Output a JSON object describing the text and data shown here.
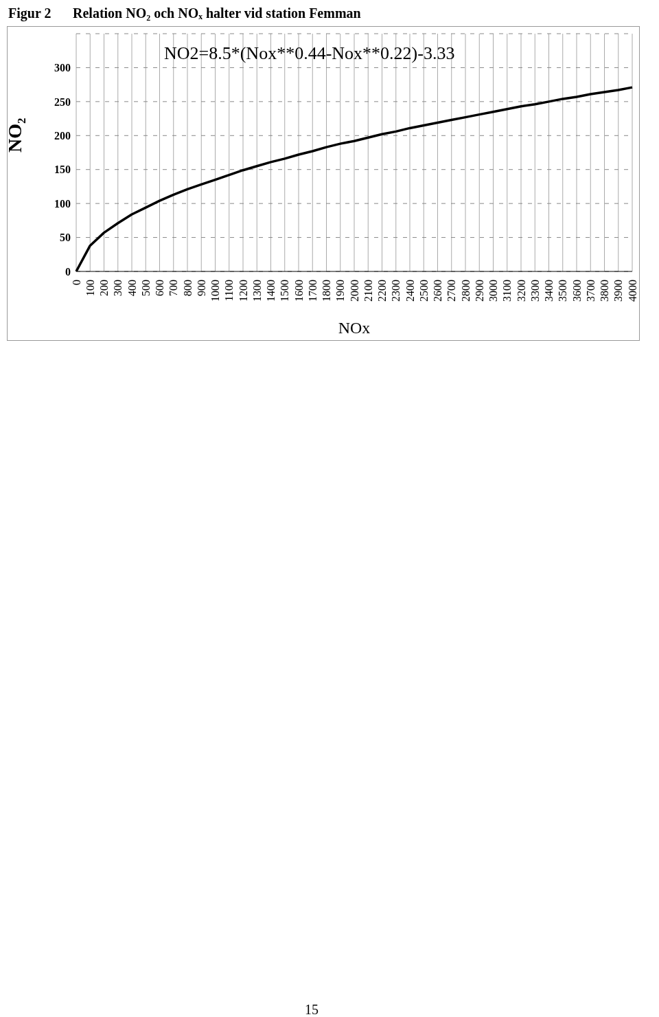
{
  "chart_data": {
    "type": "line",
    "title": "Figur 2",
    "subtitle": "Relation NO₂ och NOₓ halter vid station Femman",
    "xlabel": "NOx",
    "ylabel": "NO₂",
    "categories": [
      "0",
      "100",
      "200",
      "300",
      "400",
      "500",
      "600",
      "700",
      "800",
      "900",
      "1000",
      "1100",
      "1200",
      "1300",
      "1400",
      "1500",
      "1600",
      "1700",
      "1800",
      "1900",
      "2000",
      "2100",
      "2200",
      "2300",
      "2400",
      "2500",
      "2600",
      "2700",
      "2800",
      "2900",
      "3000",
      "3100",
      "3200",
      "3300",
      "3400",
      "3500",
      "3600",
      "3700",
      "3800",
      "3900",
      "4000"
    ],
    "series": [
      {
        "color": "#000000",
        "values": [
          0,
          38,
          57,
          71,
          84,
          94,
          104,
          113,
          121,
          128,
          135,
          142,
          149,
          155,
          161,
          166,
          172,
          177,
          183,
          188,
          192,
          197,
          202,
          206,
          211,
          215,
          219,
          223,
          227,
          231,
          235,
          239,
          243,
          246,
          250,
          254,
          257,
          261,
          264,
          267,
          271
        ]
      }
    ],
    "ylim": [
      0,
      350
    ],
    "yticks": [
      0,
      50,
      100,
      150,
      200,
      250,
      300
    ],
    "grid": true,
    "annotations": [
      "NO2=8.5*(Nox**0.44-Nox**0.22)-3.33",
      "15"
    ]
  }
}
